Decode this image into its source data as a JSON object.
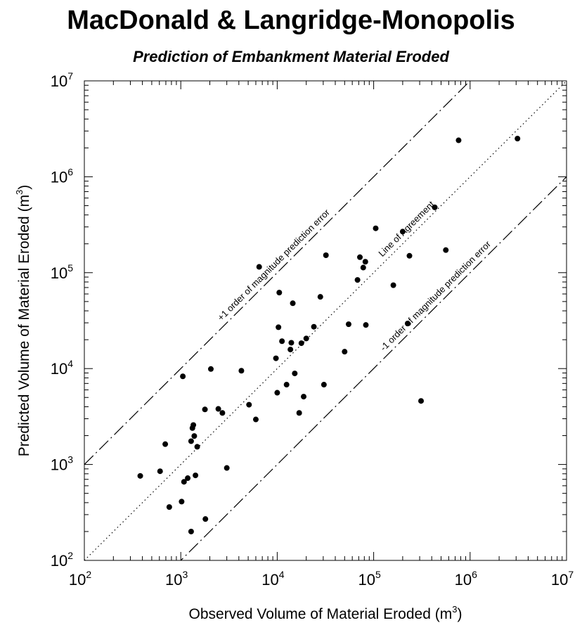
{
  "chart_data": {
    "type": "scatter",
    "title": "MacDonald & Langridge-Monopolis",
    "subtitle": "Prediction of Embankment Material Eroded",
    "xlabel": {
      "text": "Observed Volume of Material Eroded (m",
      "sup": "3",
      "close": ")"
    },
    "ylabel": {
      "text": "Predicted Volume of Material Eroded (m",
      "sup": "3",
      "close": ")"
    },
    "xscale": "log",
    "yscale": "log",
    "xlim": [
      100,
      10000000
    ],
    "ylim": [
      100,
      10000000
    ],
    "x_ticks": [
      {
        "base": "10",
        "exp": "2"
      },
      {
        "base": "10",
        "exp": "3"
      },
      {
        "base": "10",
        "exp": "4"
      },
      {
        "base": "10",
        "exp": "5"
      },
      {
        "base": "10",
        "exp": "6"
      },
      {
        "base": "10",
        "exp": "7"
      }
    ],
    "y_ticks": [
      {
        "base": "10",
        "exp": "2"
      },
      {
        "base": "10",
        "exp": "3"
      },
      {
        "base": "10",
        "exp": "4"
      },
      {
        "base": "10",
        "exp": "5"
      },
      {
        "base": "10",
        "exp": "6"
      },
      {
        "base": "10",
        "exp": "7"
      }
    ],
    "grid": false,
    "lines": [
      {
        "label": "+1 order of magnitude prediction error",
        "multiplier": 10,
        "style": "dash-dot"
      },
      {
        "label": "Line of Agreement",
        "multiplier": 1,
        "style": "dotted"
      },
      {
        "label": "-1 order of magnitude prediction error",
        "multiplier": 0.1,
        "style": "dash-dot"
      }
    ],
    "points": [
      [
        380,
        760
      ],
      [
        610,
        850
      ],
      [
        690,
        1630
      ],
      [
        760,
        360
      ],
      [
        1020,
        410
      ],
      [
        1080,
        660
      ],
      [
        1180,
        720
      ],
      [
        1280,
        200
      ],
      [
        1280,
        1750
      ],
      [
        1320,
        2400
      ],
      [
        1350,
        2580
      ],
      [
        1380,
        1980
      ],
      [
        1420,
        770
      ],
      [
        1480,
        1530
      ],
      [
        1780,
        3750
      ],
      [
        1800,
        270
      ],
      [
        2050,
        9900
      ],
      [
        1050,
        8300
      ],
      [
        2450,
        3800
      ],
      [
        2700,
        3450
      ],
      [
        3000,
        920
      ],
      [
        4250,
        9500
      ],
      [
        5100,
        4200
      ],
      [
        6000,
        2950
      ],
      [
        6500,
        115000
      ],
      [
        9700,
        12800
      ],
      [
        10000,
        5600
      ],
      [
        10300,
        27000
      ],
      [
        10500,
        62000
      ],
      [
        11200,
        19300
      ],
      [
        12500,
        6800
      ],
      [
        13700,
        15800
      ],
      [
        14000,
        18600
      ],
      [
        14500,
        48000
      ],
      [
        15200,
        8900
      ],
      [
        16900,
        3450
      ],
      [
        17800,
        18400
      ],
      [
        18800,
        5100
      ],
      [
        20000,
        20600
      ],
      [
        24000,
        27300
      ],
      [
        28000,
        56000
      ],
      [
        30500,
        6800
      ],
      [
        32000,
        152000
      ],
      [
        50000,
        15000
      ],
      [
        55000,
        29000
      ],
      [
        68000,
        84000
      ],
      [
        72000,
        145000
      ],
      [
        78000,
        113000
      ],
      [
        82000,
        130000
      ],
      [
        83000,
        28500
      ],
      [
        105000,
        290000
      ],
      [
        160000,
        74000
      ],
      [
        200000,
        268000
      ],
      [
        225000,
        29500
      ],
      [
        235000,
        150000
      ],
      [
        310000,
        4600
      ],
      [
        430000,
        480000
      ],
      [
        560000,
        172000
      ],
      [
        760000,
        2400000
      ],
      [
        3100000,
        2500000
      ]
    ]
  }
}
